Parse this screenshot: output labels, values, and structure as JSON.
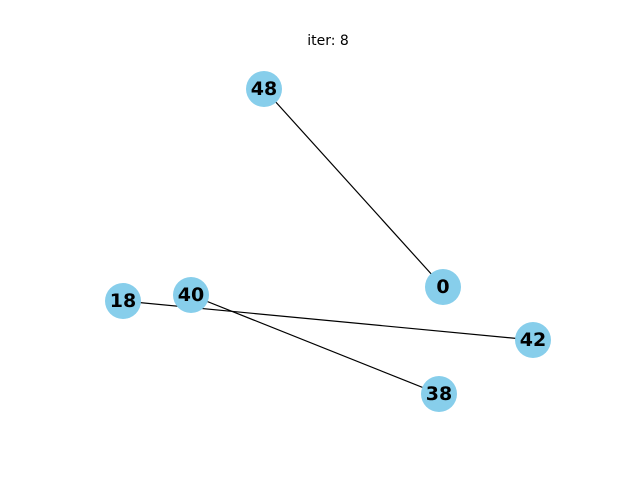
{
  "title": "iter: 8",
  "colors": {
    "node_fill": "#87CEEB",
    "edge_stroke": "#000000",
    "label_color": "#000000",
    "background": "#ffffff"
  },
  "nodes": [
    {
      "id": "48",
      "label": "48"
    },
    {
      "id": "0",
      "label": "0"
    },
    {
      "id": "18",
      "label": "18"
    },
    {
      "id": "40",
      "label": "40"
    },
    {
      "id": "42",
      "label": "42"
    },
    {
      "id": "38",
      "label": "38"
    }
  ],
  "edges": [
    {
      "source": "48",
      "target": "0"
    },
    {
      "source": "18",
      "target": "42"
    },
    {
      "source": "40",
      "target": "38"
    }
  ]
}
